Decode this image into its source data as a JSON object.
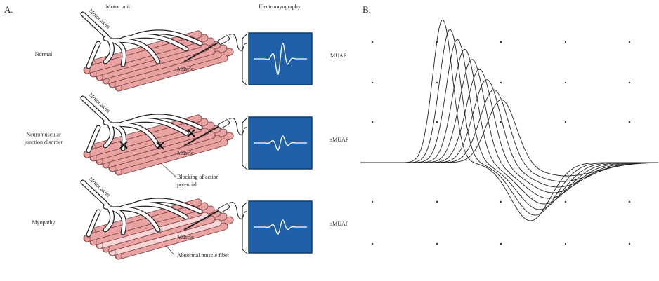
{
  "panel_a": {
    "label": "A.",
    "column_headers": {
      "motor_unit": "Motor unit",
      "electromyography": "Electromyography"
    },
    "rows": [
      {
        "label": [
          "Normal"
        ],
        "axon": "Motor axon",
        "muscle": "Muscle",
        "signal": "MUAP"
      },
      {
        "label": [
          "Neuromuscular",
          "junction disorder"
        ],
        "axon": "Motor axon",
        "muscle": "Muscle",
        "signal": "sMUAP",
        "annotation": [
          "Blocking of action",
          "potential"
        ]
      },
      {
        "label": [
          "Myopathy"
        ],
        "axon": "Motor axon",
        "muscle": "Muscle",
        "signal": "sMUAP",
        "annotation": [
          "Abnormal muscle fiber"
        ]
      }
    ]
  },
  "panel_b": {
    "label": "B."
  }
}
